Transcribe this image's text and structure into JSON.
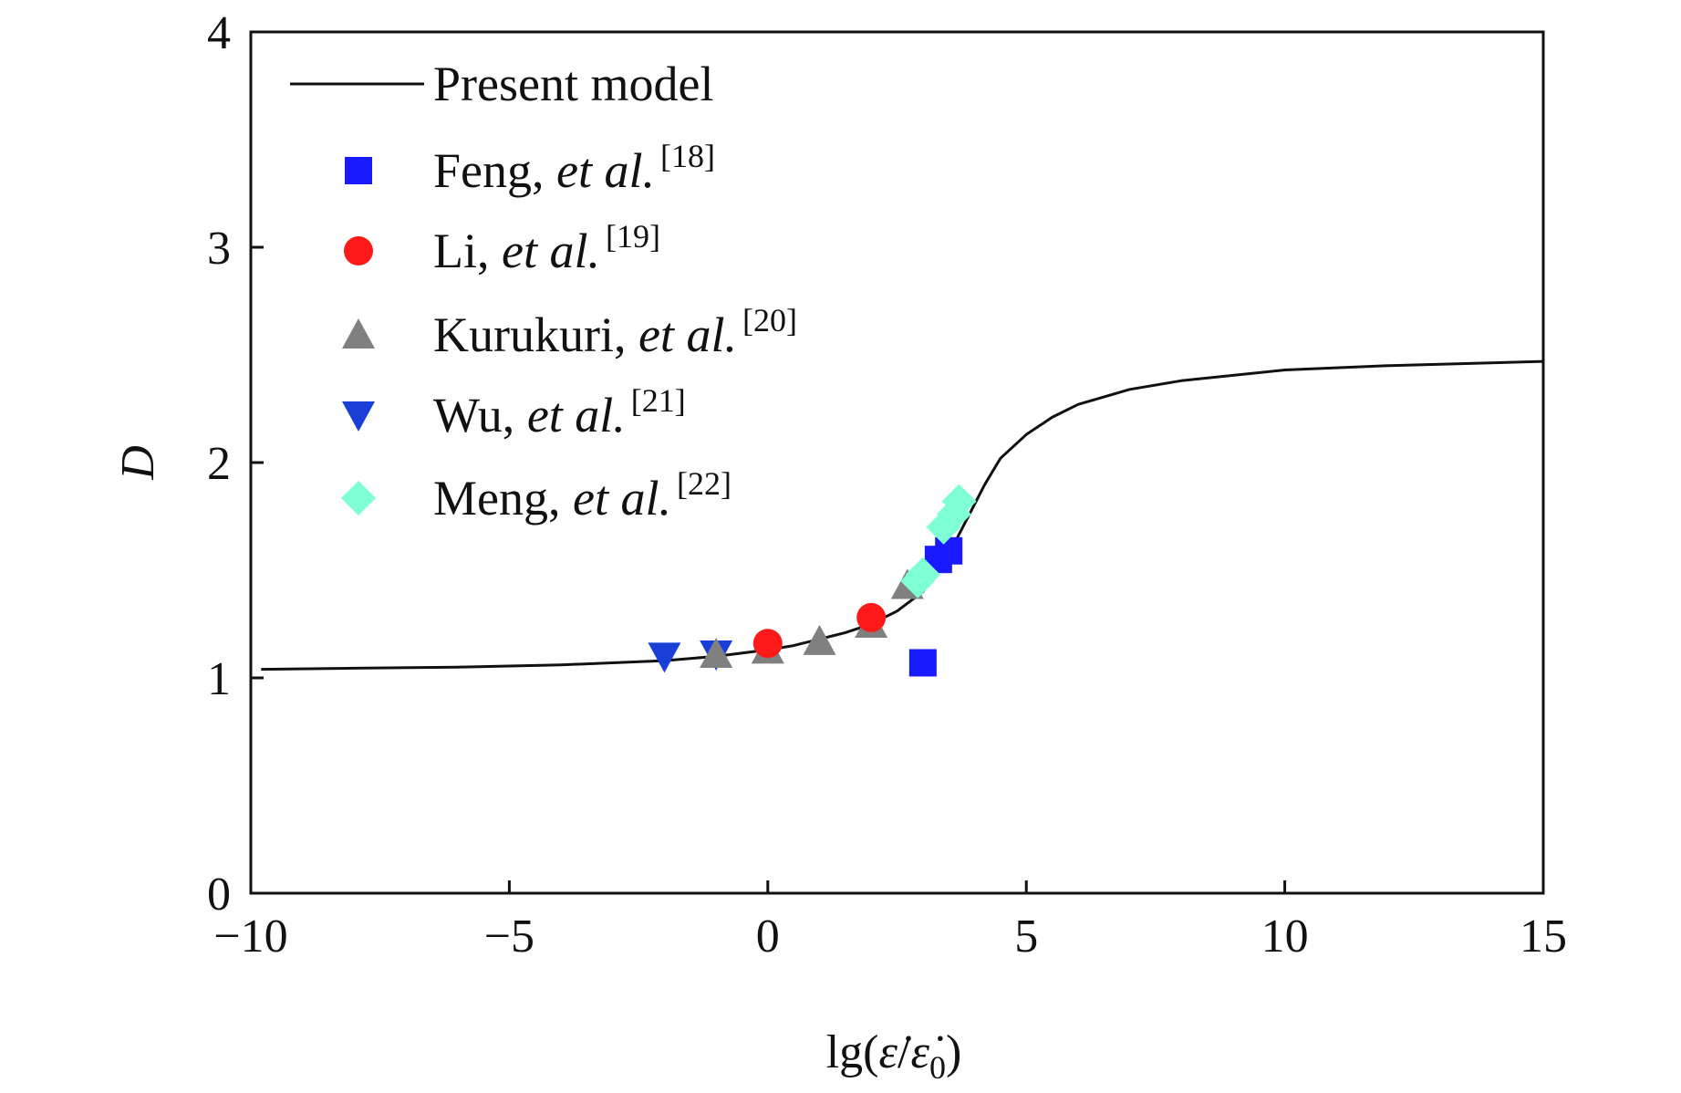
{
  "chart_data": {
    "type": "scatter",
    "title": "",
    "xlabel": "lg(ε̇/ε̇0)",
    "ylabel": "D",
    "xlim": [
      -10,
      15
    ],
    "ylim": [
      0,
      4
    ],
    "xticks": [
      -10,
      -5,
      0,
      5,
      10,
      15
    ],
    "yticks": [
      0,
      1,
      2,
      3,
      4
    ],
    "xtick_labels": [
      "−10",
      "−5",
      "0",
      "5",
      "10",
      "15"
    ],
    "ytick_labels": [
      "0",
      "1",
      "2",
      "3",
      "4"
    ],
    "grid": false,
    "legend_position": "top-left",
    "series": [
      {
        "name": "Present model",
        "kind": "line",
        "color": "#111111",
        "x": [
          -9.8,
          -8,
          -6,
          -4,
          -2,
          -1,
          0,
          0.5,
          1,
          1.5,
          2,
          2.5,
          3,
          3.3,
          3.6,
          3.9,
          4.2,
          4.5,
          5,
          5.5,
          6,
          7,
          8,
          10,
          12,
          15
        ],
        "values": [
          1.04,
          1.045,
          1.05,
          1.06,
          1.08,
          1.1,
          1.13,
          1.15,
          1.18,
          1.21,
          1.25,
          1.31,
          1.4,
          1.5,
          1.62,
          1.76,
          1.9,
          2.02,
          2.13,
          2.21,
          2.27,
          2.34,
          2.38,
          2.43,
          2.45,
          2.47
        ]
      },
      {
        "name": "Feng,",
        "name_italic": "et al.",
        "ref": "[18]",
        "kind": "scatter",
        "marker": "square",
        "color": "#1a1aff",
        "x": [
          3.0,
          3.3,
          3.5
        ],
        "values": [
          1.07,
          1.55,
          1.59
        ]
      },
      {
        "name": "Li,",
        "name_italic": "et al.",
        "ref": "[19]",
        "kind": "scatter",
        "marker": "circle",
        "color": "#ff1a1a",
        "x": [
          0,
          2.0
        ],
        "values": [
          1.16,
          1.28
        ]
      },
      {
        "name": "Kurukuri,",
        "name_italic": "et al.",
        "ref": "[20]",
        "kind": "scatter",
        "marker": "triangle-up",
        "color": "#808080",
        "x": [
          -1.0,
          0,
          1.0,
          2.0,
          2.7
        ],
        "values": [
          1.11,
          1.13,
          1.17,
          1.25,
          1.43
        ]
      },
      {
        "name": "Wu,",
        "name_italic": "et al.",
        "ref": "[21]",
        "kind": "scatter",
        "marker": "triangle-down",
        "color": "#1a3fd9",
        "x": [
          -2.0,
          -1.0
        ],
        "values": [
          1.1,
          1.11
        ]
      },
      {
        "name": "Meng,",
        "name_italic": "et al.",
        "ref": "[22]",
        "kind": "scatter",
        "marker": "diamond",
        "color": "#7fffd4",
        "x": [
          2.9,
          3.0,
          3.4,
          3.6,
          3.7
        ],
        "values": [
          1.45,
          1.48,
          1.7,
          1.76,
          1.82
        ]
      }
    ]
  }
}
